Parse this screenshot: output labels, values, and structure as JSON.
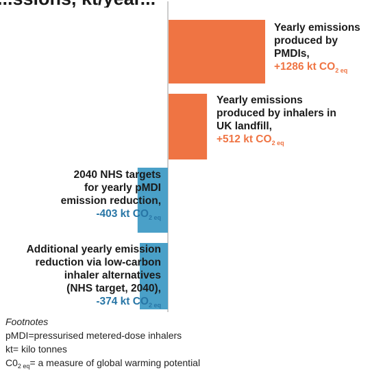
{
  "header": {
    "title": "...ssions, kt/year..."
  },
  "chart_data": {
    "type": "bar",
    "orientation": "horizontal",
    "categories": [
      "Yearly emissions produced by PMDIs",
      "Yearly emissions produced by inhalers in UK landfill",
      "2040 NHS targets for yearly pMDI emission reduction",
      "Additional yearly emission reduction via low-carbon inhaler alternatives (NHS target, 2040)"
    ],
    "values": [
      1286,
      512,
      -403,
      -374
    ],
    "unit": "kt CO2 eq",
    "colors": {
      "positive": "#ef7443",
      "negative": "#4aa0c8",
      "axis": "#999999"
    },
    "labels": [
      {
        "lines": [
          "Yearly emissions",
          "produced by",
          "PMDIs,"
        ],
        "value": "+1286 kt CO",
        "sub": "2 eq"
      },
      {
        "lines": [
          "Yearly emissions",
          "produced by inhalers in",
          "UK landfill,"
        ],
        "value": "+512 kt CO",
        "sub": "2 eq"
      },
      {
        "lines": [
          "2040 NHS targets",
          "for yearly pMDI",
          "emission reduction,"
        ],
        "value": "-403 kt CO",
        "sub": "2 eq"
      },
      {
        "lines": [
          "Additional yearly emission",
          "reduction via low-carbon",
          "inhaler alternatives",
          "(NHS target, 2040),"
        ],
        "value": "-374 kt CO",
        "sub": "2 eq"
      }
    ]
  },
  "footnotes": {
    "heading": "Footnotes",
    "items": [
      {
        "text": "pMDI=pressurised metered-dose inhalers"
      },
      {
        "text": "kt= kilo tonnes"
      },
      {
        "prefix": "C0",
        "sub": "2 eq",
        "text": "= a measure of global warming potential"
      }
    ]
  }
}
